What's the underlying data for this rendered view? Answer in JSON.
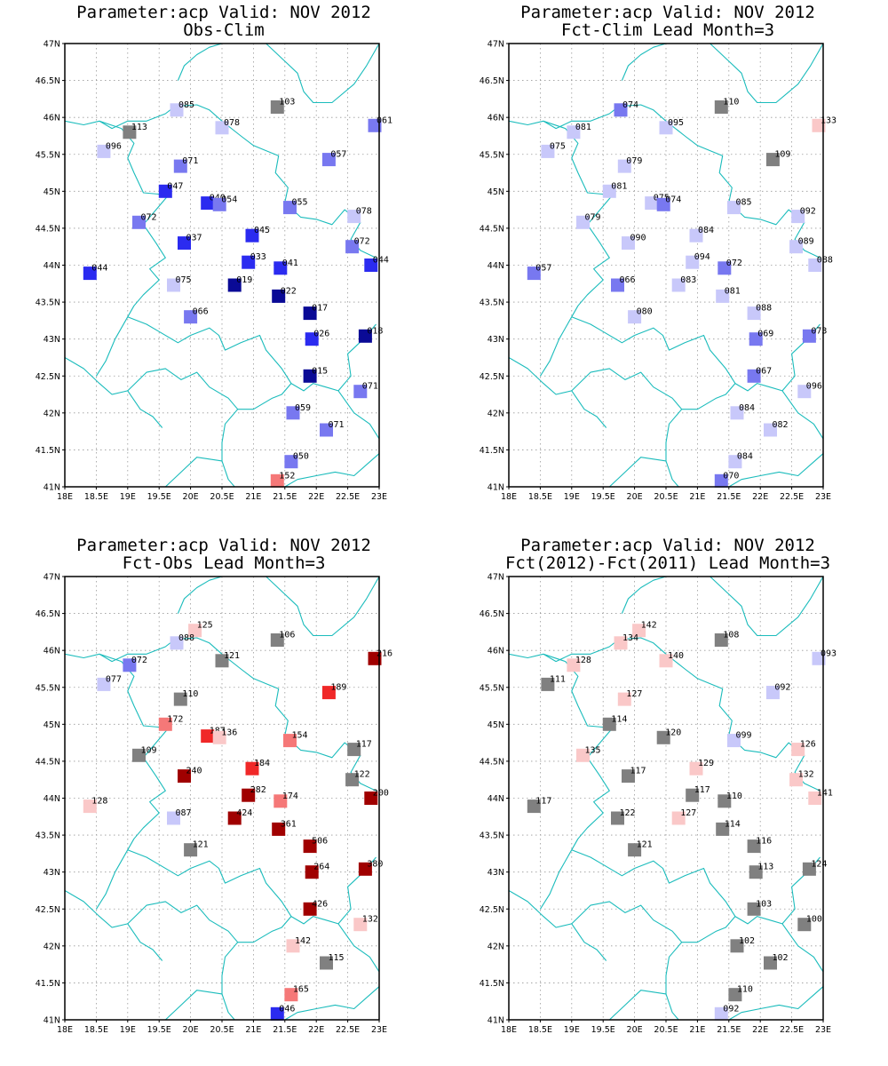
{
  "x_ticks": [
    "18E",
    "18.5E",
    "19E",
    "19.5E",
    "20E",
    "20.5E",
    "21E",
    "21.5E",
    "22E",
    "22.5E",
    "23E"
  ],
  "y_ticks": [
    "41N",
    "41.5N",
    "42N",
    "42.5N",
    "43N",
    "43.5N",
    "44N",
    "44.5N",
    "45N",
    "45.5N",
    "46N",
    "46.5N",
    "47N"
  ],
  "colors": {
    "grey": "#808080",
    "blue_1": "#c8c8fa",
    "blue_2": "#7878f0",
    "blue_3": "#2b2bf0",
    "blue_4": "#0a0a96",
    "red_1": "#fac8c8",
    "red_2": "#f57878",
    "red_3": "#f02828",
    "red_4": "#a00000",
    "border": "#1bbcbc"
  },
  "chart_data": [
    {
      "type": "map",
      "title": "Parameter:acp Valid: NOV 2012",
      "subtitle": "Obs-Clim",
      "xlim": [
        18,
        23
      ],
      "ylim": [
        41,
        47
      ],
      "stations": [
        {
          "lon": 19.78,
          "lat": 46.1,
          "label": "085",
          "c": "blue_1"
        },
        {
          "lon": 21.38,
          "lat": 46.14,
          "label": "103",
          "c": "grey"
        },
        {
          "lon": 20.5,
          "lat": 45.86,
          "label": "078",
          "c": "blue_1"
        },
        {
          "lon": 22.93,
          "lat": 45.89,
          "label": "061",
          "c": "blue_2"
        },
        {
          "lon": 19.03,
          "lat": 45.8,
          "label": "113",
          "c": "grey"
        },
        {
          "lon": 18.62,
          "lat": 45.54,
          "label": "096",
          "c": "blue_1"
        },
        {
          "lon": 19.84,
          "lat": 45.34,
          "label": "071",
          "c": "blue_2"
        },
        {
          "lon": 22.2,
          "lat": 45.43,
          "label": "057",
          "c": "blue_2"
        },
        {
          "lon": 19.6,
          "lat": 45.0,
          "label": "047",
          "c": "blue_3"
        },
        {
          "lon": 20.27,
          "lat": 44.84,
          "label": "040",
          "c": "blue_3"
        },
        {
          "lon": 20.46,
          "lat": 44.82,
          "label": "054",
          "c": "blue_2"
        },
        {
          "lon": 21.58,
          "lat": 44.78,
          "label": "055",
          "c": "blue_2"
        },
        {
          "lon": 22.6,
          "lat": 44.66,
          "label": "078",
          "c": "blue_1"
        },
        {
          "lon": 19.18,
          "lat": 44.58,
          "label": "072",
          "c": "blue_2"
        },
        {
          "lon": 19.9,
          "lat": 44.3,
          "label": "037",
          "c": "blue_3"
        },
        {
          "lon": 20.98,
          "lat": 44.4,
          "label": "045",
          "c": "blue_3"
        },
        {
          "lon": 22.57,
          "lat": 44.25,
          "label": "072",
          "c": "blue_2"
        },
        {
          "lon": 20.92,
          "lat": 44.04,
          "label": "033",
          "c": "blue_3"
        },
        {
          "lon": 21.43,
          "lat": 43.96,
          "label": "041",
          "c": "blue_3"
        },
        {
          "lon": 22.87,
          "lat": 44.0,
          "label": "044",
          "c": "blue_3"
        },
        {
          "lon": 18.4,
          "lat": 43.89,
          "label": "044",
          "c": "blue_3"
        },
        {
          "lon": 19.73,
          "lat": 43.73,
          "label": "075",
          "c": "blue_1"
        },
        {
          "lon": 20.7,
          "lat": 43.73,
          "label": "019",
          "c": "blue_4"
        },
        {
          "lon": 21.4,
          "lat": 43.58,
          "label": "022",
          "c": "blue_4"
        },
        {
          "lon": 20.0,
          "lat": 43.3,
          "label": "066",
          "c": "blue_2"
        },
        {
          "lon": 21.9,
          "lat": 43.35,
          "label": "017",
          "c": "blue_4"
        },
        {
          "lon": 21.93,
          "lat": 43.0,
          "label": "026",
          "c": "blue_3"
        },
        {
          "lon": 22.78,
          "lat": 43.04,
          "label": "018",
          "c": "blue_4"
        },
        {
          "lon": 21.9,
          "lat": 42.5,
          "label": "015",
          "c": "blue_4"
        },
        {
          "lon": 22.7,
          "lat": 42.29,
          "label": "071",
          "c": "blue_2"
        },
        {
          "lon": 21.63,
          "lat": 42.0,
          "label": "059",
          "c": "blue_2"
        },
        {
          "lon": 22.16,
          "lat": 41.77,
          "label": "071",
          "c": "blue_2"
        },
        {
          "lon": 21.6,
          "lat": 41.34,
          "label": "050",
          "c": "blue_2"
        },
        {
          "lon": 21.38,
          "lat": 41.08,
          "label": "152",
          "c": "red_2"
        }
      ]
    },
    {
      "type": "map",
      "title": "Parameter:acp Valid: NOV 2012",
      "subtitle": "Fct-Clim Lead Month=3",
      "xlim": [
        18,
        23
      ],
      "ylim": [
        41,
        47
      ],
      "stations": [
        {
          "lon": 19.78,
          "lat": 46.1,
          "label": "074",
          "c": "blue_2"
        },
        {
          "lon": 21.38,
          "lat": 46.14,
          "label": "110",
          "c": "grey"
        },
        {
          "lon": 20.5,
          "lat": 45.86,
          "label": "095",
          "c": "blue_1"
        },
        {
          "lon": 22.93,
          "lat": 45.89,
          "label": "133",
          "c": "red_1"
        },
        {
          "lon": 19.03,
          "lat": 45.8,
          "label": "081",
          "c": "blue_1"
        },
        {
          "lon": 18.62,
          "lat": 45.54,
          "label": "075",
          "c": "blue_1"
        },
        {
          "lon": 19.84,
          "lat": 45.34,
          "label": "079",
          "c": "blue_1"
        },
        {
          "lon": 22.2,
          "lat": 45.43,
          "label": "109",
          "c": "grey"
        },
        {
          "lon": 19.6,
          "lat": 45.0,
          "label": "081",
          "c": "blue_1"
        },
        {
          "lon": 20.27,
          "lat": 44.84,
          "label": "075",
          "c": "blue_1"
        },
        {
          "lon": 20.46,
          "lat": 44.82,
          "label": "074",
          "c": "blue_2"
        },
        {
          "lon": 21.58,
          "lat": 44.78,
          "label": "085",
          "c": "blue_1"
        },
        {
          "lon": 22.6,
          "lat": 44.66,
          "label": "092",
          "c": "blue_1"
        },
        {
          "lon": 19.18,
          "lat": 44.58,
          "label": "079",
          "c": "blue_1"
        },
        {
          "lon": 19.9,
          "lat": 44.3,
          "label": "090",
          "c": "blue_1"
        },
        {
          "lon": 20.98,
          "lat": 44.4,
          "label": "084",
          "c": "blue_1"
        },
        {
          "lon": 22.57,
          "lat": 44.25,
          "label": "089",
          "c": "blue_1"
        },
        {
          "lon": 20.92,
          "lat": 44.04,
          "label": "094",
          "c": "blue_1"
        },
        {
          "lon": 21.43,
          "lat": 43.96,
          "label": "072",
          "c": "blue_2"
        },
        {
          "lon": 22.87,
          "lat": 44.0,
          "label": "088",
          "c": "blue_1"
        },
        {
          "lon": 18.4,
          "lat": 43.89,
          "label": "057",
          "c": "blue_2"
        },
        {
          "lon": 19.73,
          "lat": 43.73,
          "label": "066",
          "c": "blue_2"
        },
        {
          "lon": 20.7,
          "lat": 43.73,
          "label": "083",
          "c": "blue_1"
        },
        {
          "lon": 21.4,
          "lat": 43.58,
          "label": "081",
          "c": "blue_1"
        },
        {
          "lon": 20.0,
          "lat": 43.3,
          "label": "080",
          "c": "blue_1"
        },
        {
          "lon": 21.9,
          "lat": 43.35,
          "label": "088",
          "c": "blue_1"
        },
        {
          "lon": 21.93,
          "lat": 43.0,
          "label": "069",
          "c": "blue_2"
        },
        {
          "lon": 22.78,
          "lat": 43.04,
          "label": "073",
          "c": "blue_2"
        },
        {
          "lon": 21.9,
          "lat": 42.5,
          "label": "067",
          "c": "blue_2"
        },
        {
          "lon": 22.7,
          "lat": 42.29,
          "label": "096",
          "c": "blue_1"
        },
        {
          "lon": 21.63,
          "lat": 42.0,
          "label": "084",
          "c": "blue_1"
        },
        {
          "lon": 22.16,
          "lat": 41.77,
          "label": "082",
          "c": "blue_1"
        },
        {
          "lon": 21.6,
          "lat": 41.34,
          "label": "084",
          "c": "blue_1"
        },
        {
          "lon": 21.38,
          "lat": 41.08,
          "label": "070",
          "c": "blue_2"
        }
      ]
    },
    {
      "type": "map",
      "title": "Parameter:acp Valid: NOV 2012",
      "subtitle": "Fct-Obs Lead Month=3",
      "xlim": [
        18,
        23
      ],
      "ylim": [
        41,
        47
      ],
      "stations": [
        {
          "lon": 20.07,
          "lat": 46.27,
          "label": "125",
          "c": "red_1"
        },
        {
          "lon": 19.78,
          "lat": 46.1,
          "label": "088",
          "c": "blue_1"
        },
        {
          "lon": 21.38,
          "lat": 46.14,
          "label": "106",
          "c": "grey"
        },
        {
          "lon": 22.93,
          "lat": 45.89,
          "label": "216",
          "c": "red_4"
        },
        {
          "lon": 19.03,
          "lat": 45.8,
          "label": "072",
          "c": "blue_2"
        },
        {
          "lon": 20.5,
          "lat": 45.86,
          "label": "121",
          "c": "grey"
        },
        {
          "lon": 18.62,
          "lat": 45.54,
          "label": "077",
          "c": "blue_1"
        },
        {
          "lon": 22.2,
          "lat": 45.43,
          "label": "189",
          "c": "red_3"
        },
        {
          "lon": 19.84,
          "lat": 45.34,
          "label": "110",
          "c": "grey"
        },
        {
          "lon": 19.6,
          "lat": 45.0,
          "label": "172",
          "c": "red_2"
        },
        {
          "lon": 20.27,
          "lat": 44.84,
          "label": "187",
          "c": "red_3"
        },
        {
          "lon": 20.46,
          "lat": 44.82,
          "label": "136",
          "c": "red_1"
        },
        {
          "lon": 21.58,
          "lat": 44.78,
          "label": "154",
          "c": "red_2"
        },
        {
          "lon": 22.6,
          "lat": 44.66,
          "label": "117",
          "c": "grey"
        },
        {
          "lon": 19.18,
          "lat": 44.58,
          "label": "109",
          "c": "grey"
        },
        {
          "lon": 19.9,
          "lat": 44.3,
          "label": "240",
          "c": "red_4"
        },
        {
          "lon": 20.98,
          "lat": 44.4,
          "label": "184",
          "c": "red_3"
        },
        {
          "lon": 22.57,
          "lat": 44.25,
          "label": "122",
          "c": "grey"
        },
        {
          "lon": 20.92,
          "lat": 44.04,
          "label": "282",
          "c": "red_4"
        },
        {
          "lon": 21.43,
          "lat": 43.96,
          "label": "174",
          "c": "red_2"
        },
        {
          "lon": 22.87,
          "lat": 44.0,
          "label": "200",
          "c": "red_4"
        },
        {
          "lon": 18.4,
          "lat": 43.89,
          "label": "128",
          "c": "red_1"
        },
        {
          "lon": 19.73,
          "lat": 43.73,
          "label": "087",
          "c": "blue_1"
        },
        {
          "lon": 20.7,
          "lat": 43.73,
          "label": "424",
          "c": "red_4"
        },
        {
          "lon": 21.4,
          "lat": 43.58,
          "label": "361",
          "c": "red_4"
        },
        {
          "lon": 20.0,
          "lat": 43.3,
          "label": "121",
          "c": "grey"
        },
        {
          "lon": 21.9,
          "lat": 43.35,
          "label": "506",
          "c": "red_4"
        },
        {
          "lon": 21.93,
          "lat": 43.0,
          "label": "264",
          "c": "red_4"
        },
        {
          "lon": 22.78,
          "lat": 43.04,
          "label": "380",
          "c": "red_4"
        },
        {
          "lon": 21.9,
          "lat": 42.5,
          "label": "426",
          "c": "red_4"
        },
        {
          "lon": 22.7,
          "lat": 42.29,
          "label": "132",
          "c": "red_1"
        },
        {
          "lon": 21.63,
          "lat": 42.0,
          "label": "142",
          "c": "red_1"
        },
        {
          "lon": 22.16,
          "lat": 41.77,
          "label": "115",
          "c": "grey"
        },
        {
          "lon": 21.6,
          "lat": 41.34,
          "label": "165",
          "c": "red_2"
        },
        {
          "lon": 21.38,
          "lat": 41.08,
          "label": "046",
          "c": "blue_3"
        }
      ]
    },
    {
      "type": "map",
      "title": "Parameter:acp Valid: NOV 2012",
      "subtitle": "Fct(2012)-Fct(2011) Lead Month=3",
      "xlim": [
        18,
        23
      ],
      "ylim": [
        41,
        47
      ],
      "stations": [
        {
          "lon": 20.07,
          "lat": 46.27,
          "label": "142",
          "c": "red_1"
        },
        {
          "lon": 19.78,
          "lat": 46.1,
          "label": "134",
          "c": "red_1"
        },
        {
          "lon": 21.38,
          "lat": 46.14,
          "label": "108",
          "c": "grey"
        },
        {
          "lon": 22.93,
          "lat": 45.89,
          "label": "093",
          "c": "blue_1"
        },
        {
          "lon": 19.03,
          "lat": 45.8,
          "label": "128",
          "c": "red_1"
        },
        {
          "lon": 20.5,
          "lat": 45.86,
          "label": "140",
          "c": "red_1"
        },
        {
          "lon": 18.62,
          "lat": 45.54,
          "label": "111",
          "c": "grey"
        },
        {
          "lon": 22.2,
          "lat": 45.43,
          "label": "092",
          "c": "blue_1"
        },
        {
          "lon": 19.84,
          "lat": 45.34,
          "label": "127",
          "c": "red_1"
        },
        {
          "lon": 19.6,
          "lat": 45.0,
          "label": "114",
          "c": "grey"
        },
        {
          "lon": 20.46,
          "lat": 44.82,
          "label": "120",
          "c": "grey"
        },
        {
          "lon": 21.58,
          "lat": 44.78,
          "label": "099",
          "c": "blue_1"
        },
        {
          "lon": 22.6,
          "lat": 44.66,
          "label": "126",
          "c": "red_1"
        },
        {
          "lon": 19.18,
          "lat": 44.58,
          "label": "135",
          "c": "red_1"
        },
        {
          "lon": 20.98,
          "lat": 44.4,
          "label": "129",
          "c": "red_1"
        },
        {
          "lon": 19.9,
          "lat": 44.3,
          "label": "117",
          "c": "grey"
        },
        {
          "lon": 22.57,
          "lat": 44.25,
          "label": "132",
          "c": "red_1"
        },
        {
          "lon": 20.92,
          "lat": 44.04,
          "label": "117",
          "c": "grey"
        },
        {
          "lon": 21.43,
          "lat": 43.96,
          "label": "110",
          "c": "grey"
        },
        {
          "lon": 22.87,
          "lat": 44.0,
          "label": "141",
          "c": "red_1"
        },
        {
          "lon": 18.4,
          "lat": 43.89,
          "label": "117",
          "c": "grey"
        },
        {
          "lon": 19.73,
          "lat": 43.73,
          "label": "122",
          "c": "grey"
        },
        {
          "lon": 20.7,
          "lat": 43.73,
          "label": "127",
          "c": "red_1"
        },
        {
          "lon": 21.4,
          "lat": 43.58,
          "label": "114",
          "c": "grey"
        },
        {
          "lon": 20.0,
          "lat": 43.3,
          "label": "121",
          "c": "grey"
        },
        {
          "lon": 21.9,
          "lat": 43.35,
          "label": "116",
          "c": "grey"
        },
        {
          "lon": 21.93,
          "lat": 43.0,
          "label": "113",
          "c": "grey"
        },
        {
          "lon": 22.78,
          "lat": 43.04,
          "label": "124",
          "c": "grey"
        },
        {
          "lon": 21.9,
          "lat": 42.5,
          "label": "103",
          "c": "grey"
        },
        {
          "lon": 22.7,
          "lat": 42.29,
          "label": "100",
          "c": "grey"
        },
        {
          "lon": 21.63,
          "lat": 42.0,
          "label": "102",
          "c": "grey"
        },
        {
          "lon": 22.16,
          "lat": 41.77,
          "label": "102",
          "c": "grey"
        },
        {
          "lon": 21.6,
          "lat": 41.34,
          "label": "110",
          "c": "grey"
        },
        {
          "lon": 21.38,
          "lat": 41.08,
          "label": "092",
          "c": "blue_1"
        }
      ]
    }
  ]
}
